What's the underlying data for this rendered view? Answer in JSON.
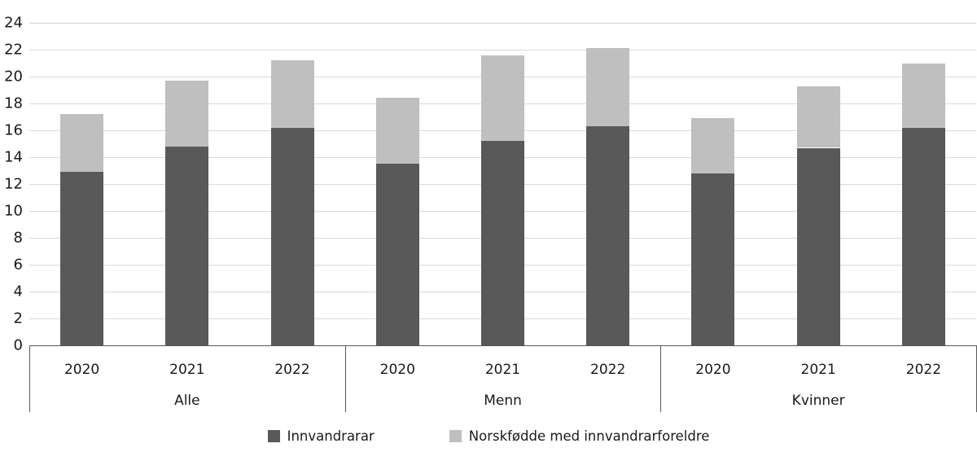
{
  "chart_data": {
    "type": "bar",
    "stacked": true,
    "title": "",
    "xlabel": "",
    "ylabel": "",
    "groups": [
      "Alle",
      "Menn",
      "Kvinner"
    ],
    "categories": [
      "2020",
      "2021",
      "2022"
    ],
    "series": [
      {
        "name": "Innvandrarar",
        "color": "#595959",
        "values": [
          [
            12.9,
            14.8,
            16.2
          ],
          [
            13.5,
            15.2,
            16.3
          ],
          [
            12.8,
            14.7,
            16.2
          ]
        ]
      },
      {
        "name": "Norskfødde med innvandrarforeldre",
        "color": "#bfbfbf",
        "values": [
          [
            4.3,
            4.9,
            5.0
          ],
          [
            4.9,
            6.4,
            5.8
          ],
          [
            4.1,
            4.6,
            4.8
          ]
        ]
      }
    ],
    "totals": [
      [
        17.2,
        19.7,
        21.2
      ],
      [
        18.4,
        21.6,
        22.1
      ],
      [
        16.9,
        19.3,
        21.0
      ]
    ],
    "ylim": [
      0,
      24
    ],
    "ytick_step": 2,
    "yticks": [
      0,
      2,
      4,
      6,
      8,
      10,
      12,
      14,
      16,
      18,
      20,
      22,
      24
    ],
    "grid": true,
    "legend_position": "bottom",
    "colors": {
      "gridline": "#d9d9d9",
      "axis": "#595959",
      "text": "#1a1a1a",
      "background": "#ffffff"
    }
  }
}
